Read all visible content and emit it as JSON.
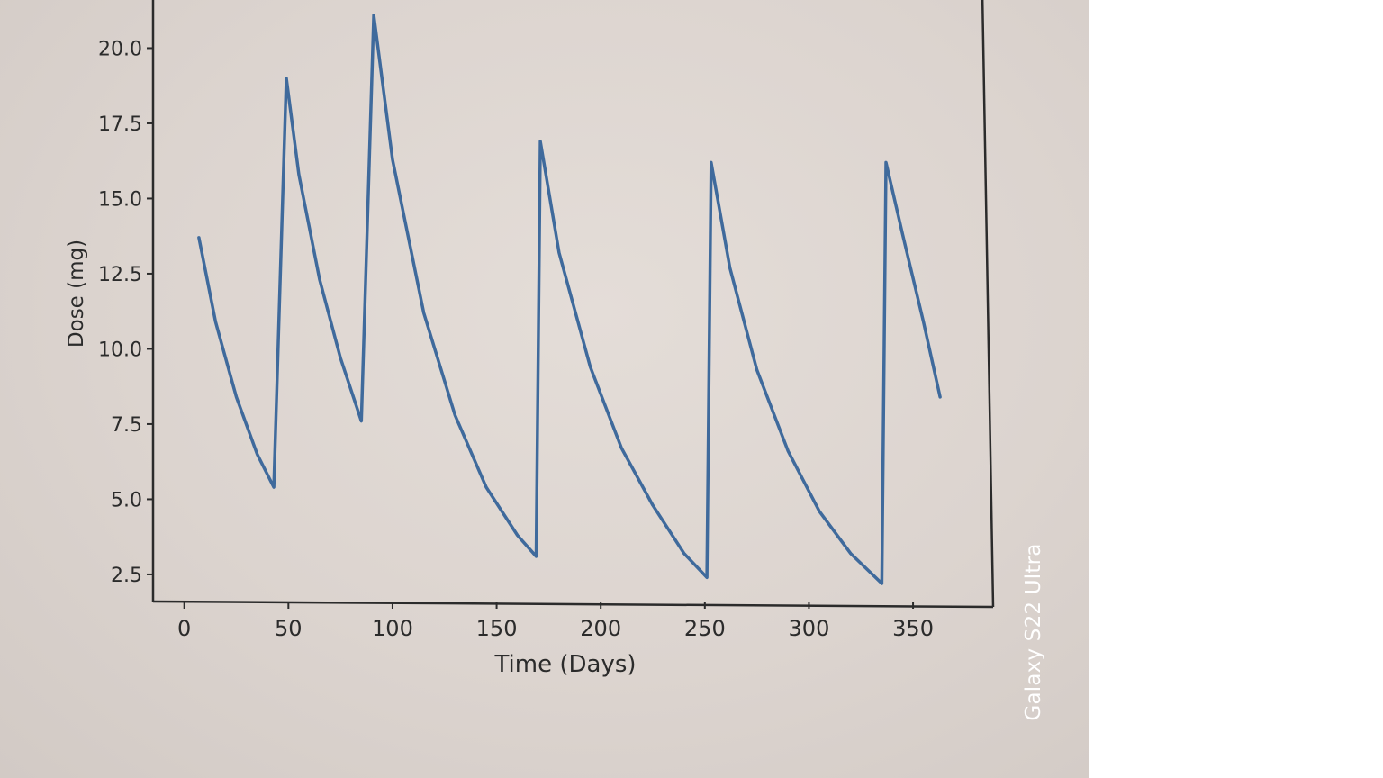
{
  "watermark": "Galaxy S22 Ultra",
  "chart_data": {
    "type": "line",
    "title": "",
    "xlabel": "Time (Days)",
    "ylabel": "Dose (mg)",
    "xlim": [
      -15,
      385
    ],
    "ylim": [
      1.6,
      21.9
    ],
    "xticks": [
      0,
      50,
      100,
      150,
      200,
      250,
      300,
      350
    ],
    "yticks": [
      2.5,
      5.0,
      7.5,
      10.0,
      12.5,
      15.0,
      17.5,
      20.0
    ],
    "grid": false,
    "line_color": "#3f6a9c",
    "series": [
      {
        "name": "",
        "x": [
          7,
          15,
          25,
          35,
          43,
          49,
          55,
          65,
          75,
          85,
          91,
          100,
          115,
          130,
          145,
          160,
          169,
          171,
          180,
          195,
          210,
          225,
          240,
          251,
          253,
          262,
          275,
          290,
          305,
          320,
          335,
          337,
          345,
          355,
          363
        ],
        "y": [
          13.7,
          10.9,
          8.4,
          6.5,
          5.4,
          19.0,
          15.8,
          12.3,
          9.7,
          7.6,
          21.1,
          16.3,
          11.2,
          7.8,
          5.4,
          3.8,
          3.1,
          16.9,
          13.2,
          9.4,
          6.7,
          4.8,
          3.2,
          2.4,
          16.2,
          12.7,
          9.3,
          6.6,
          4.6,
          3.2,
          2.2,
          16.2,
          13.8,
          10.9,
          8.4
        ]
      }
    ]
  }
}
